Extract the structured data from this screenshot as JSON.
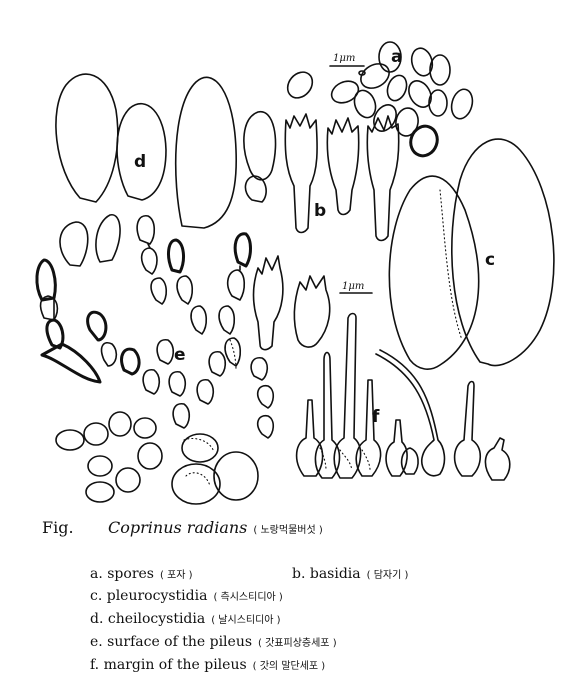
{
  "labels": {
    "a": "a",
    "b": "b",
    "c": "c",
    "d": "d",
    "e": "e",
    "f": "f",
    "scale_top": "1μm",
    "scale_mid": "1μm"
  },
  "caption": {
    "fig_label": "Fig.",
    "species": "Coprinus radians",
    "species_korean": "( 노랑먹물버섯 )",
    "items": [
      {
        "text": "a. spores",
        "korean": "( 포자 )"
      },
      {
        "text": "b. basidia",
        "korean": "( 담자기 )"
      },
      {
        "text": "c. pleurocystidia",
        "korean": "( 측시스티디아 )"
      },
      {
        "text": "d. cheilocystidia",
        "korean": "( 날시스티디아 )"
      },
      {
        "text": "e. surface of the pileus",
        "korean": "( 갓표피상층세포 )"
      },
      {
        "text": "f. margin of the pileus",
        "korean": "( 갓의 말단세포 )"
      }
    ]
  }
}
